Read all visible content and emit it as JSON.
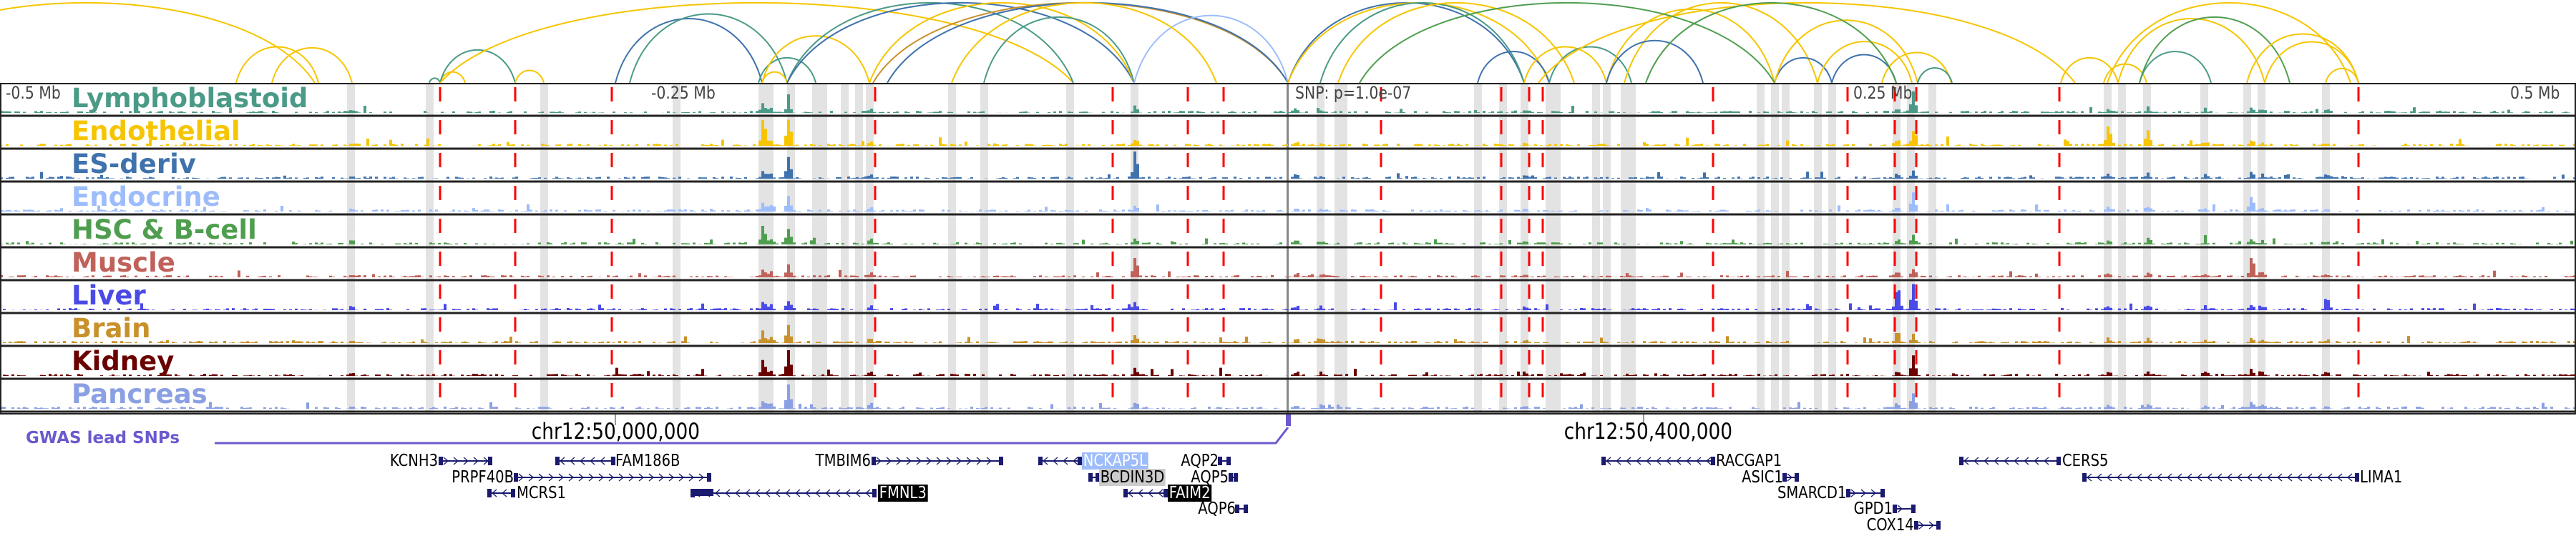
{
  "axis": {
    "left": "-0.5 Mb",
    "left_mid": "-0.25 Mb",
    "center": "SNP: p=1.0e-07",
    "right_mid": "0.25 Mb",
    "right": "0.5 Mb"
  },
  "tracks": [
    {
      "label": "Lymphoblastoid",
      "color": "#4a9a87"
    },
    {
      "label": "Endothelial",
      "color": "#f6c500"
    },
    {
      "label": "ES-deriv",
      "color": "#3f72ad"
    },
    {
      "label": "Endocrine",
      "color": "#9dbcfb"
    },
    {
      "label": "HSC & B-cell",
      "color": "#4f9e4f"
    },
    {
      "label": "Muscle",
      "color": "#c0615a"
    },
    {
      "label": "Liver",
      "color": "#4a4ae6"
    },
    {
      "label": "Brain",
      "color": "#c8912a"
    },
    {
      "label": "Kidney",
      "color": "#6a0000"
    },
    {
      "label": "Pancreas",
      "color": "#8aa0e2"
    }
  ],
  "coordinates": [
    "chr12:50,000,000",
    "chr12:50,400,000"
  ],
  "gwas": {
    "label": "GWAS lead SNPs",
    "color": "#6a5acd"
  },
  "genes": [
    "KCNH3",
    "FAM186B",
    "TMBIM6",
    "PRPF40B",
    "MCRS1",
    "FMNL3",
    "NCKAP5L",
    "BCDIN3D",
    "FAIM2",
    "AQP2",
    "AQP5",
    "AQP6",
    "RACGAP1",
    "ASIC1",
    "SMARCD1",
    "GPD1",
    "COX14",
    "CERS5",
    "LIMA1"
  ],
  "colors": {
    "highlight_line": "#ff0000",
    "gene": "#1a1a6e",
    "band": "#e3e3e3"
  }
}
